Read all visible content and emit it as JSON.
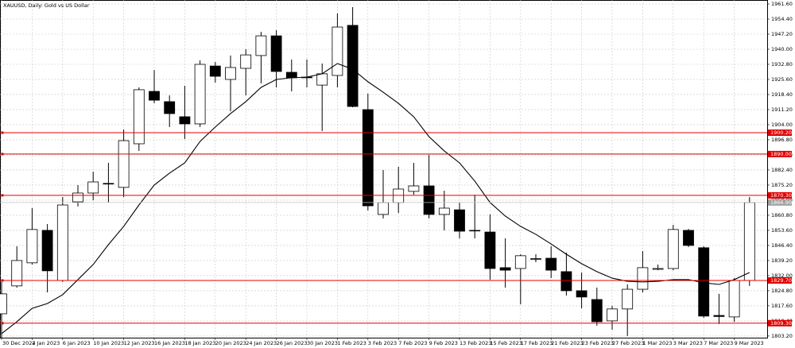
{
  "chart_data": {
    "type": "candlestick",
    "title": "XAUUSD, Daily:  Gold vs US Dollar",
    "categories": [
      "30 Dec 2022",
      null,
      "4 Jan 2023",
      null,
      "6 Jan 2023",
      null,
      "10 Jan 2023",
      null,
      "12 Jan 2023",
      null,
      "16 Jan 2023",
      null,
      "18 Jan 2023",
      null,
      "20 Jan 2023",
      null,
      "24 Jan 2023",
      null,
      "26 Jan 2023",
      null,
      "30 Jan 2023",
      null,
      "1 Feb 2023",
      null,
      "3 Feb 2023",
      null,
      "7 Feb 2023",
      null,
      "9 Feb 2023",
      null,
      "13 Feb 2023",
      null,
      "15 Feb 2023",
      null,
      "17 Feb 2023",
      null,
      "21 Feb 2023",
      null,
      "23 Feb 2023",
      null,
      "27 Feb 2023",
      null,
      "1 Mar 2023",
      null,
      "3 Mar 2023",
      null,
      "7 Mar 2023",
      null,
      "9 Mar 2023",
      null
    ],
    "open": [
      1813.8,
      1827.1,
      1838.1,
      1853.6,
      1829.7,
      1867.2,
      1871.4,
      1876.0,
      1874.1,
      1894.9,
      1919.9,
      1915.0,
      1907.8,
      1904.4,
      1932.0,
      1925.6,
      1930.9,
      1937.0,
      1946.4,
      1929.0,
      1926.7,
      1922.9,
      1927.5,
      1951.4,
      1911.2,
      1861.2,
      1866.9,
      1872.2,
      1874.8,
      1861.2,
      1863.4,
      1853.6,
      1852.8,
      1835.8,
      1835.4,
      1839.9,
      1840.3,
      1833.9,
      1824.8,
      1820.6,
      1810.4,
      1816.1,
      1825.5,
      1835.0,
      1835.4,
      1853.6,
      1845.3,
      1813.0,
      1812.3,
      1829.7
    ],
    "high": [
      1829.0,
      1846.0,
      1864.2,
      1856.6,
      1869.5,
      1875.2,
      1881.6,
      1885.8,
      1901.7,
      1921.8,
      1930.1,
      1918.0,
      1922.6,
      1934.7,
      1933.9,
      1937.0,
      1940.0,
      1948.3,
      1949.1,
      1935.1,
      1935.1,
      1933.2,
      1957.1,
      1960.1,
      1918.8,
      1882.4,
      1883.9,
      1885.8,
      1889.6,
      1872.5,
      1866.9,
      1870.6,
      1861.2,
      1849.8,
      1842.2,
      1842.2,
      1846.0,
      1843.0,
      1833.5,
      1826.3,
      1817.6,
      1827.8,
      1843.7,
      1837.3,
      1856.2,
      1854.3,
      1846.0,
      1823.3,
      1830.8,
      1869.5
    ],
    "low": [
      1802.4,
      1826.3,
      1837.3,
      1824.0,
      1829.0,
      1865.0,
      1868.0,
      1866.9,
      1869.5,
      1891.5,
      1914.2,
      1902.9,
      1897.2,
      1902.9,
      1924.1,
      1910.4,
      1918.0,
      1923.7,
      1921.8,
      1919.9,
      1921.8,
      1901.0,
      1921.8,
      1912.3,
      1863.1,
      1859.3,
      1861.9,
      1870.6,
      1859.3,
      1853.6,
      1849.8,
      1849.8,
      1830.1,
      1826.3,
      1818.3,
      1838.4,
      1830.8,
      1822.5,
      1816.4,
      1808.1,
      1806.2,
      1803.2,
      1824.0,
      1834.6,
      1834.6,
      1845.6,
      1811.9,
      1808.9,
      1810.0,
      1827.1
    ],
    "close": [
      1823.3,
      1839.2,
      1854.0,
      1834.3,
      1865.7,
      1871.4,
      1876.7,
      1875.8,
      1896.4,
      1920.7,
      1915.7,
      1909.3,
      1904.4,
      1932.8,
      1927.1,
      1931.3,
      1937.3,
      1946.4,
      1929.4,
      1926.4,
      1926.5,
      1928.3,
      1950.6,
      1912.7,
      1865.3,
      1866.9,
      1873.3,
      1874.8,
      1861.2,
      1864.2,
      1853.2,
      1853.4,
      1835.4,
      1834.6,
      1841.5,
      1840.1,
      1834.6,
      1824.8,
      1821.8,
      1810.0,
      1816.1,
      1825.5,
      1835.8,
      1835.4,
      1854.0,
      1846.4,
      1812.7,
      1812.5,
      1829.7,
      1866.9
    ],
    "up_color": "#ffffff",
    "down_color": "#000000",
    "border_color": "#000000",
    "ma": {
      "color": "#000000",
      "values": [
        1804.3,
        1810.0,
        1816.4,
        1818.7,
        1822.9,
        1830.1,
        1837.3,
        1846.8,
        1855.5,
        1865.7,
        1875.2,
        1880.9,
        1885.8,
        1896.0,
        1902.9,
        1909.3,
        1915.0,
        1921.8,
        1925.6,
        1926.4,
        1926.7,
        1928.3,
        1933.2,
        1930.5,
        1924.5,
        1919.5,
        1914.2,
        1907.8,
        1898.3,
        1891.5,
        1885.8,
        1877.1,
        1866.9,
        1860.4,
        1855.5,
        1851.7,
        1847.1,
        1842.2,
        1837.7,
        1833.9,
        1830.8,
        1829.3,
        1829.0,
        1829.3,
        1830.1,
        1830.1,
        1828.6,
        1827.8,
        1830.1,
        1833.5
      ]
    },
    "levels": [
      {
        "value": 1900.2,
        "label": "1900.20"
      },
      {
        "value": 1890.0,
        "label": "1890.00"
      },
      {
        "value": 1870.3,
        "label": "1870.30"
      },
      {
        "value": 1829.7,
        "label": "1829.70"
      },
      {
        "value": 1809.3,
        "label": "1809.30"
      }
    ],
    "level_color": "#e00000",
    "last_price": {
      "value": 1866.9,
      "label": "1866.90"
    },
    "ylim": [
      1802.4,
      1963.5
    ],
    "yticks": [
      {
        "value": 1803.2,
        "label": "1803.20"
      },
      {
        "value": 1810.4,
        "label": "1810.40"
      },
      {
        "value": 1817.6,
        "label": "1817.60"
      },
      {
        "value": 1824.8,
        "label": "1824.80"
      },
      {
        "value": 1832.0,
        "label": "1832.00"
      },
      {
        "value": 1839.2,
        "label": "1839.20"
      },
      {
        "value": 1846.4,
        "label": "1846.40"
      },
      {
        "value": 1853.6,
        "label": "1853.60"
      },
      {
        "value": 1860.8,
        "label": "1860.80"
      },
      {
        "value": 1868.0,
        "label": "1868.00"
      },
      {
        "value": 1875.2,
        "label": "1875.20"
      },
      {
        "value": 1882.4,
        "label": "1882.40"
      },
      {
        "value": 1889.6,
        "label": "1889.60"
      },
      {
        "value": 1896.8,
        "label": "1896.80"
      },
      {
        "value": 1904.0,
        "label": "1904.00"
      },
      {
        "value": 1911.2,
        "label": "1911.20"
      },
      {
        "value": 1918.4,
        "label": "1918.40"
      },
      {
        "value": 1925.6,
        "label": "1925.60"
      },
      {
        "value": 1932.8,
        "label": "1932.80"
      },
      {
        "value": 1940.0,
        "label": "1940.00"
      },
      {
        "value": 1947.2,
        "label": "1947.20"
      },
      {
        "value": 1954.4,
        "label": "1954.40"
      },
      {
        "value": 1961.6,
        "label": "1961.60"
      }
    ],
    "grid": true
  }
}
